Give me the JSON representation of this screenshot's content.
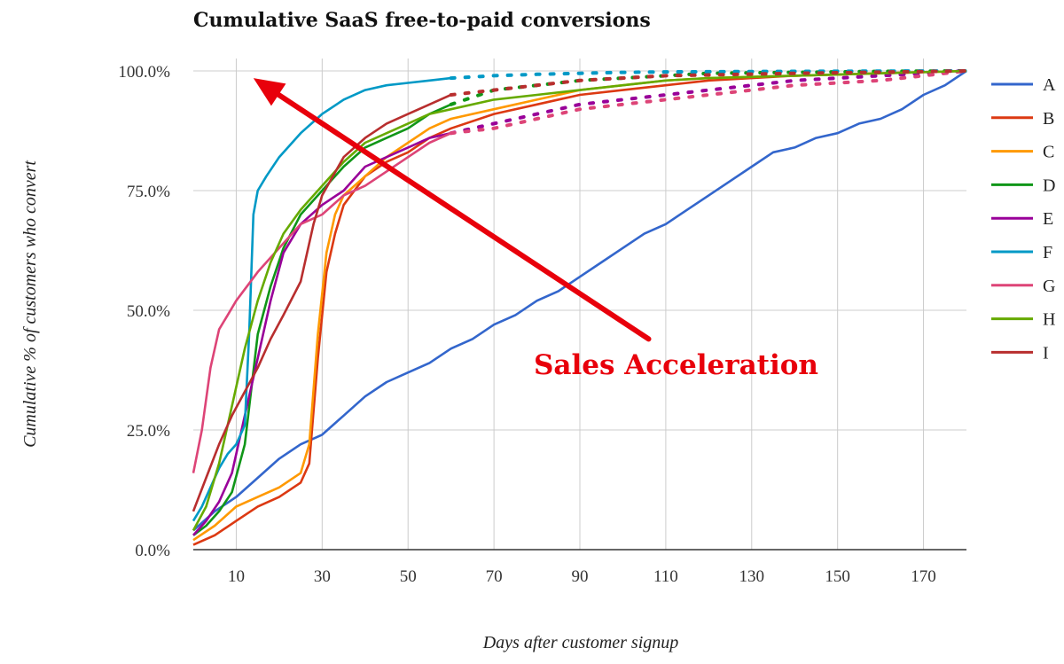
{
  "chart_data": {
    "type": "line",
    "title": "Cumulative SaaS free-to-paid conversions",
    "xlabel": "Days after customer signup",
    "ylabel": "Cumulative % of customers who convert",
    "xlim": [
      0,
      180
    ],
    "ylim": [
      0,
      100
    ],
    "x_ticks": [
      10,
      30,
      50,
      70,
      90,
      110,
      130,
      150,
      170
    ],
    "y_ticks": [
      0,
      25,
      50,
      75,
      100
    ],
    "y_tick_labels": [
      "0.0%",
      "25.0%",
      "50.0%",
      "75.0%",
      "100.0%"
    ],
    "grid": true,
    "legend_position": "right",
    "series": [
      {
        "name": "A",
        "color": "#3366cc",
        "style": "solid",
        "x": [
          0,
          5,
          10,
          15,
          20,
          25,
          30,
          35,
          40,
          45,
          50,
          55,
          60,
          65,
          70,
          75,
          80,
          85,
          90,
          95,
          100,
          105,
          110,
          115,
          120,
          125,
          130,
          135,
          140,
          145,
          150,
          155,
          160,
          165,
          170,
          175,
          180
        ],
        "y": [
          4,
          8,
          11,
          15,
          19,
          22,
          24,
          28,
          32,
          35,
          37,
          39,
          42,
          44,
          47,
          49,
          52,
          54,
          57,
          60,
          63,
          66,
          68,
          71,
          74,
          77,
          80,
          83,
          84,
          86,
          87,
          89,
          90,
          92,
          95,
          97,
          100
        ]
      },
      {
        "name": "B",
        "color": "#dc3912",
        "style": "solid",
        "x": [
          0,
          5,
          10,
          15,
          20,
          25,
          27,
          29,
          31,
          33,
          35,
          40,
          45,
          50,
          55,
          60,
          70,
          80,
          90,
          100,
          110,
          120,
          140,
          160,
          180
        ],
        "y": [
          1,
          3,
          6,
          9,
          11,
          14,
          18,
          40,
          58,
          66,
          72,
          78,
          81,
          83,
          86,
          88,
          91,
          93,
          95,
          96,
          97,
          98,
          99,
          99.5,
          100
        ]
      },
      {
        "name": "C",
        "color": "#ff9900",
        "style": "solid",
        "x": [
          0,
          5,
          10,
          15,
          20,
          25,
          27,
          29,
          31,
          33,
          35,
          40,
          45,
          50,
          55,
          60,
          70,
          80,
          90,
          100,
          110,
          120,
          140,
          160,
          180
        ],
        "y": [
          2,
          5,
          9,
          11,
          13,
          16,
          22,
          45,
          62,
          70,
          74,
          78,
          82,
          85,
          88,
          90,
          92,
          94,
          96,
          97,
          98,
          98.5,
          99,
          99.5,
          100
        ]
      },
      {
        "name": "D",
        "color": "#109618",
        "style": "mixed",
        "x": [
          0,
          3,
          6,
          9,
          12,
          15,
          18,
          21,
          25,
          30,
          35,
          40,
          45,
          50,
          55,
          60,
          70,
          80,
          90,
          100,
          110,
          120,
          140,
          160,
          180
        ],
        "y": [
          3,
          5,
          8,
          12,
          22,
          45,
          55,
          63,
          70,
          75,
          80,
          84,
          86,
          88,
          91,
          93,
          96,
          97,
          98,
          98.5,
          99,
          99.5,
          99.7,
          99.9,
          100
        ]
      },
      {
        "name": "E",
        "color": "#990099",
        "style": "mixed",
        "x": [
          0,
          3,
          6,
          9,
          12,
          15,
          18,
          21,
          25,
          30,
          35,
          40,
          45,
          50,
          55,
          60,
          70,
          80,
          90,
          100,
          110,
          120,
          140,
          160,
          180
        ],
        "y": [
          3,
          6,
          10,
          16,
          28,
          40,
          52,
          62,
          68,
          72,
          75,
          80,
          82,
          84,
          86,
          87,
          89,
          91,
          93,
          94,
          95,
          96,
          98,
          99,
          100
        ]
      },
      {
        "name": "F",
        "color": "#0099c6",
        "style": "mixed",
        "x": [
          0,
          2,
          4,
          6,
          8,
          10,
          12,
          13,
          14,
          15,
          17,
          20,
          25,
          30,
          35,
          40,
          45,
          50,
          55,
          60,
          70,
          80,
          90,
          100,
          110,
          140,
          180
        ],
        "y": [
          6,
          9,
          13,
          17,
          20,
          22,
          26,
          45,
          70,
          75,
          78,
          82,
          87,
          91,
          94,
          96,
          97,
          97.5,
          98,
          98.5,
          99,
          99.3,
          99.5,
          99.7,
          99.8,
          99.9,
          100
        ]
      },
      {
        "name": "G",
        "color": "#dd4477",
        "style": "mixed",
        "x": [
          0,
          2,
          4,
          6,
          8,
          10,
          15,
          20,
          25,
          30,
          35,
          40,
          45,
          50,
          55,
          60,
          70,
          80,
          90,
          100,
          110,
          120,
          140,
          160,
          180
        ],
        "y": [
          16,
          25,
          38,
          46,
          49,
          52,
          58,
          63,
          68,
          70,
          74,
          76,
          79,
          82,
          85,
          87,
          88,
          90,
          92,
          93,
          94,
          95,
          97,
          98,
          100
        ]
      },
      {
        "name": "H",
        "color": "#66aa00",
        "style": "solid",
        "x": [
          0,
          3,
          6,
          9,
          12,
          15,
          18,
          21,
          25,
          30,
          35,
          40,
          45,
          50,
          55,
          60,
          70,
          80,
          90,
          100,
          110,
          120,
          140,
          160,
          180
        ],
        "y": [
          4,
          9,
          18,
          30,
          42,
          52,
          60,
          66,
          71,
          76,
          81,
          85,
          87,
          89,
          91,
          92,
          94,
          95,
          96,
          97,
          98,
          98.5,
          99,
          99.5,
          100
        ]
      },
      {
        "name": "I",
        "color": "#b82e2e",
        "style": "mixed",
        "x": [
          0,
          3,
          6,
          9,
          12,
          15,
          18,
          21,
          25,
          28,
          30,
          35,
          40,
          45,
          50,
          55,
          60,
          70,
          80,
          90,
          100,
          110,
          140,
          180
        ],
        "y": [
          8,
          15,
          22,
          28,
          33,
          38,
          44,
          49,
          56,
          68,
          74,
          82,
          86,
          89,
          91,
          93,
          95,
          96,
          97,
          98,
          98.5,
          99,
          99.5,
          100
        ]
      }
    ],
    "annotation": {
      "text": "Sales Acceleration",
      "color": "#e8000b",
      "arrow_tail": {
        "x": 106,
        "y": 44
      },
      "arrow_head": {
        "x": 14,
        "y": 98.5
      }
    }
  }
}
